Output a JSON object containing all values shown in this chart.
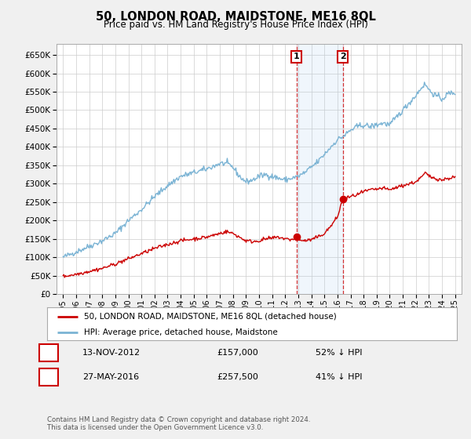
{
  "title": "50, LONDON ROAD, MAIDSTONE, ME16 8QL",
  "subtitle": "Price paid vs. HM Land Registry's House Price Index (HPI)",
  "hpi_color": "#7ab3d4",
  "price_color": "#cc0000",
  "background_color": "#f0f0f0",
  "plot_bg_color": "#ffffff",
  "ylim": [
    0,
    680000
  ],
  "yticks": [
    0,
    50000,
    100000,
    150000,
    200000,
    250000,
    300000,
    350000,
    400000,
    450000,
    500000,
    550000,
    600000,
    650000
  ],
  "legend_entries": [
    "50, LONDON ROAD, MAIDSTONE, ME16 8QL (detached house)",
    "HPI: Average price, detached house, Maidstone"
  ],
  "transactions": [
    {
      "num": 1,
      "date": "13-NOV-2012",
      "price": 157000,
      "pct": "52%",
      "dir": "↓"
    },
    {
      "num": 2,
      "date": "27-MAY-2016",
      "price": 257500,
      "pct": "41%",
      "dir": "↓"
    }
  ],
  "footnote": "Contains HM Land Registry data © Crown copyright and database right 2024.\nThis data is licensed under the Open Government Licence v3.0.",
  "marker1_x": 2012.87,
  "marker1_y": 157000,
  "marker2_x": 2016.41,
  "marker2_y": 257500,
  "vline1_x": 2012.87,
  "vline2_x": 2016.41,
  "xlim_left": 1994.5,
  "xlim_right": 2025.5
}
